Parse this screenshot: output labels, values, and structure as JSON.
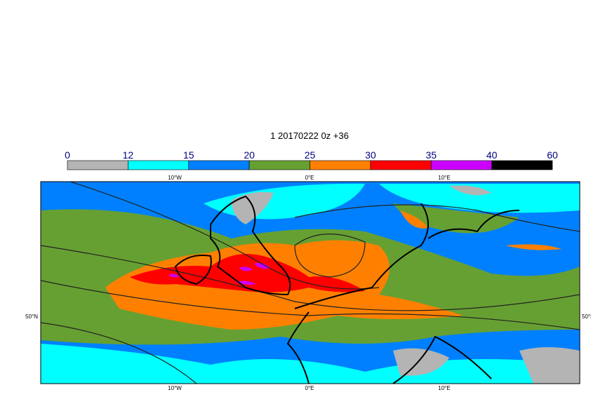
{
  "title": "1 20170222 0z +36",
  "colorbar": {
    "levels": [
      0,
      12,
      15,
      20,
      25,
      30,
      35,
      40,
      60
    ],
    "colors": [
      "#b4b4b4",
      "#00ffff",
      "#0080ff",
      "#66a032",
      "#ff8000",
      "#ff0000",
      "#cc00ff",
      "#000000"
    ]
  },
  "lon_labels": [
    "10°W",
    "0°E",
    "10°E"
  ],
  "lat_labels": [
    "50°N"
  ]
}
